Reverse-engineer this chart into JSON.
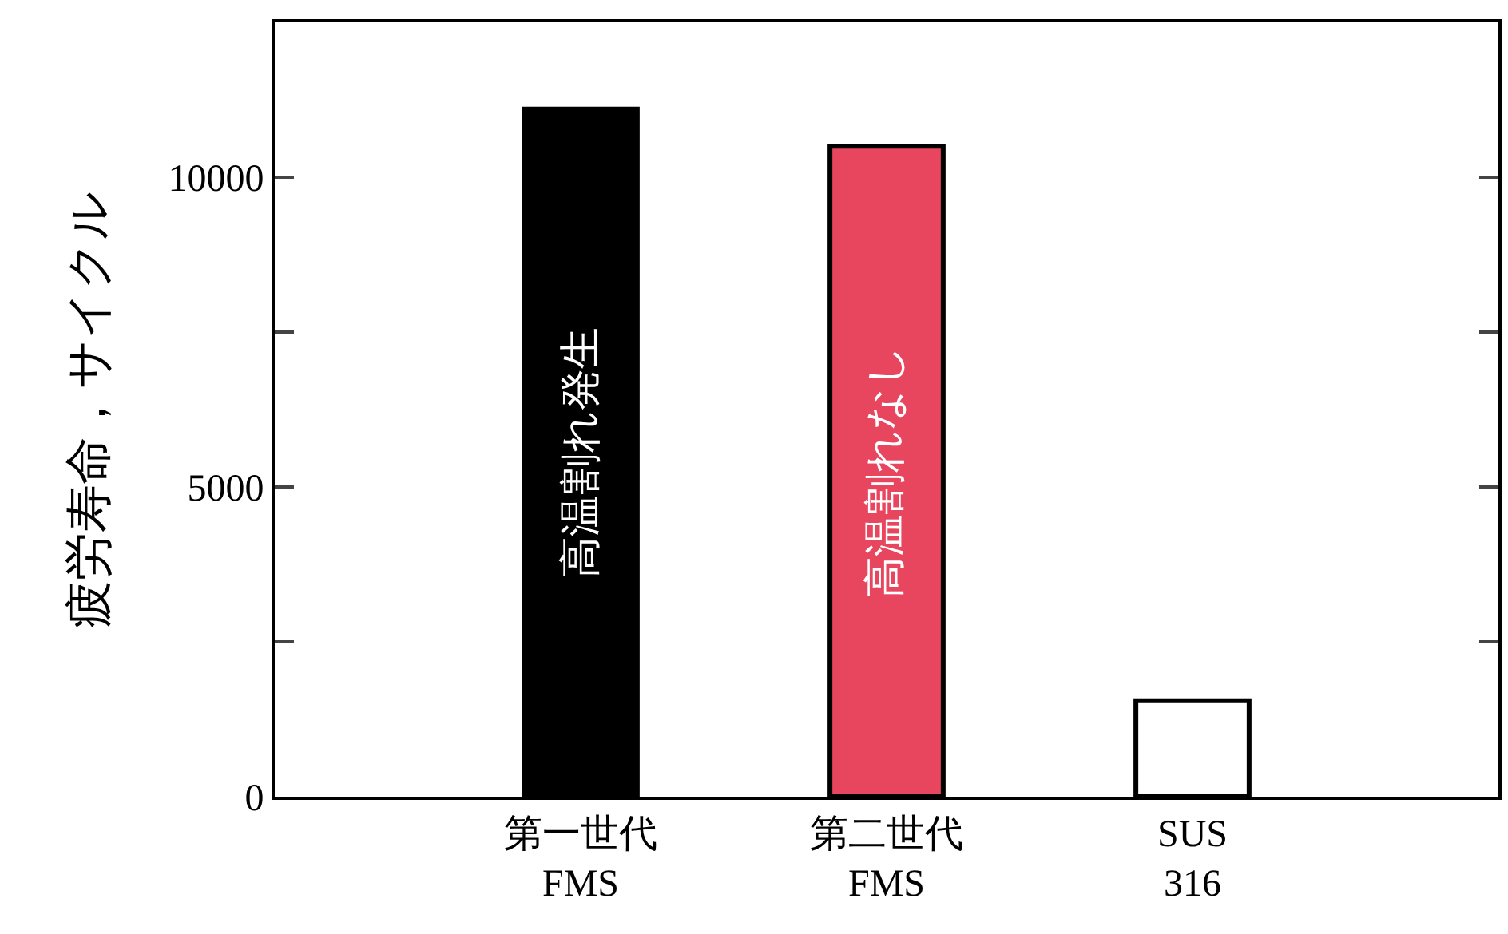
{
  "chart_data": {
    "type": "bar",
    "ylabel": "疲労寿命，サイクル",
    "categories": [
      "第一世代\nFMS",
      "第二世代\nFMS",
      "SUS\n316"
    ],
    "values": [
      11100,
      10500,
      1550
    ],
    "colors": [
      "#000000",
      "#e8455f",
      "#ffffff"
    ],
    "ylim": [
      0,
      12500
    ],
    "yticks": [
      0,
      {
        "value": 2500,
        "label": null
      },
      5000,
      {
        "value": 7500,
        "label": null
      },
      10000
    ],
    "annotations": [
      "高温割れ発生",
      "高温割れなし"
    ],
    "legend": false
  }
}
